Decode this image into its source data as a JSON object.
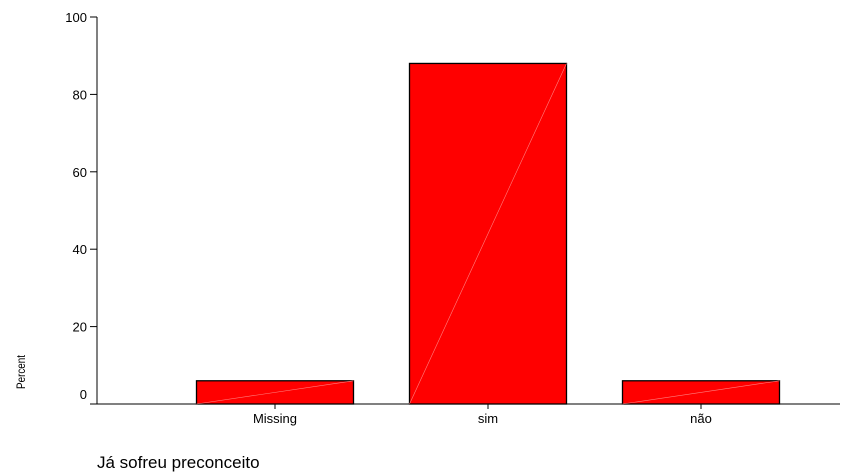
{
  "chart_data": {
    "type": "bar",
    "categories": [
      "Missing",
      "sim",
      "não"
    ],
    "values": [
      6,
      88,
      6
    ],
    "xlabel": "Já sofreu preconceito",
    "ylabel": "Percent",
    "ylim": [
      0,
      100
    ],
    "yticks": [
      0,
      20,
      40,
      60,
      80,
      100
    ],
    "grid": false,
    "bar_color": "#ff0000",
    "bar_outline_color": "#000000"
  }
}
